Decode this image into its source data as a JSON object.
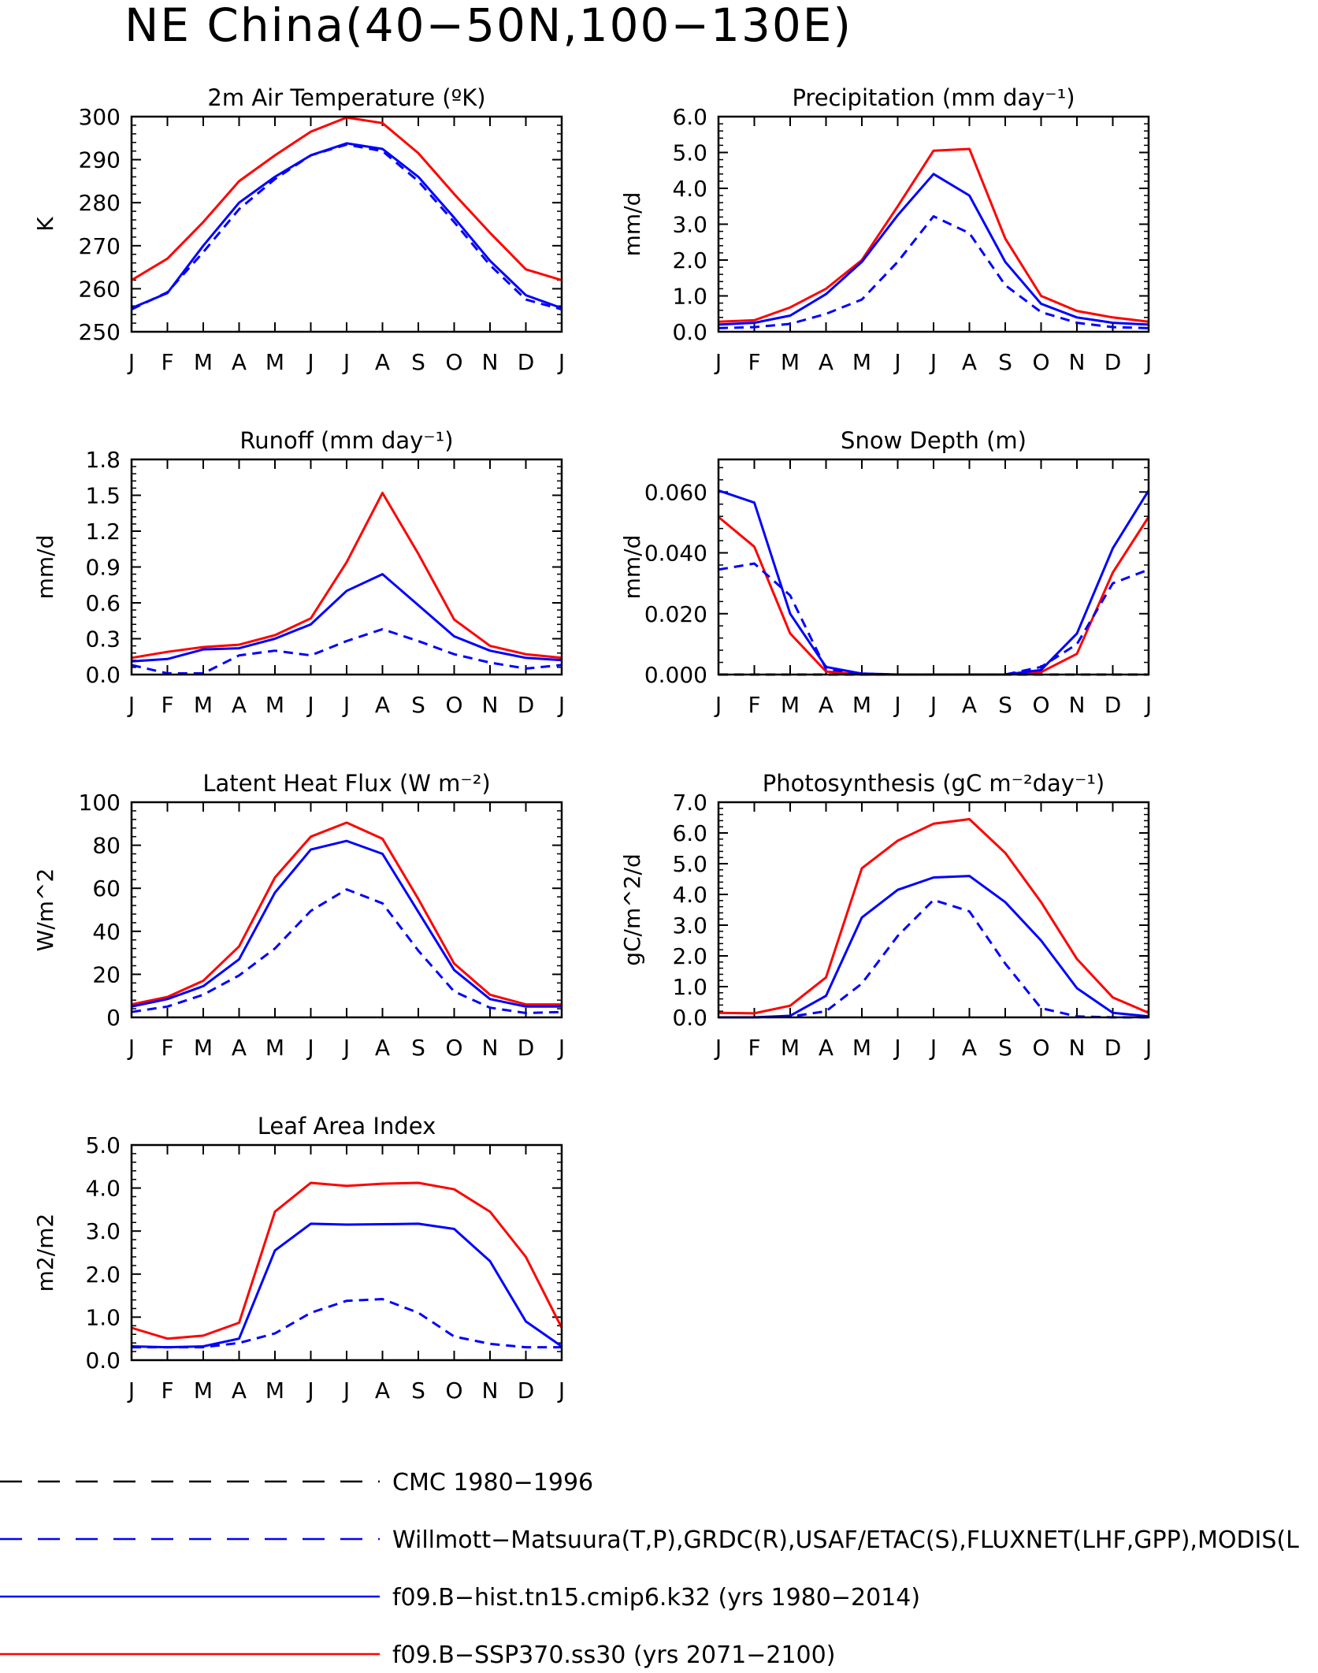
{
  "figure": {
    "title": "NE China(40−50N,100−130E)",
    "month_labels": [
      "J",
      "F",
      "M",
      "A",
      "M",
      "J",
      "J",
      "A",
      "S",
      "O",
      "N",
      "D",
      "J"
    ]
  },
  "colors": {
    "model_hist": "#0000ff",
    "model_ssp": "#ff0000",
    "obs": "#0000ff",
    "cmc": "#000000"
  },
  "legend": {
    "items": [
      {
        "label": "CMC 1980−1996",
        "color": "#000000",
        "style": "dashed"
      },
      {
        "label": "Willmott−Matsuura(T,P),GRDC(R),USAF/ETAC(S),FLUXNET(LHF,GPP),MODIS(L",
        "color": "#0000ff",
        "style": "dashed"
      },
      {
        "label": "f09.B−hist.tn15.cmip6.k32 (yrs 1980−2014)",
        "color": "#0000ff",
        "style": "solid"
      },
      {
        "label": "f09.B−SSP370.ss30 (yrs 2071−2100)",
        "color": "#ff0000",
        "style": "solid"
      }
    ]
  },
  "chart_data": [
    {
      "type": "line",
      "title": "2m Air Temperature (ºK)",
      "ylabel": "K",
      "ylim": [
        250,
        300
      ],
      "yticks": [
        "250",
        "260",
        "270",
        "280",
        "290",
        "300"
      ],
      "x": [
        "J",
        "F",
        "M",
        "A",
        "M",
        "J",
        "J",
        "A",
        "S",
        "O",
        "N",
        "D",
        "J"
      ],
      "series": [
        {
          "values": [
            262,
            267,
            275.5,
            285,
            291,
            296.5,
            299.8,
            298.5,
            291.5,
            282,
            273,
            264.5,
            262
          ],
          "color": "#ff0000",
          "style": "solid"
        },
        {
          "values": [
            255.5,
            259,
            270,
            280,
            286,
            291,
            293.8,
            292.5,
            286,
            276.5,
            266.5,
            258.5,
            255.5
          ],
          "color": "#0000ff",
          "style": "solid"
        },
        {
          "values": [
            255.2,
            259.2,
            268.5,
            278.5,
            285.5,
            291,
            293.5,
            292,
            285,
            275.5,
            265.5,
            257.5,
            255.2
          ],
          "color": "#0000ff",
          "style": "dashed"
        }
      ]
    },
    {
      "type": "line",
      "title": "Precipitation (mm day⁻¹)",
      "ylabel": "mm/d",
      "ylim": [
        0,
        6
      ],
      "yticks": [
        "0.0",
        "1.0",
        "2.0",
        "3.0",
        "4.0",
        "5.0",
        "6.0"
      ],
      "x": [
        "J",
        "F",
        "M",
        "A",
        "M",
        "J",
        "J",
        "A",
        "S",
        "O",
        "N",
        "D",
        "J"
      ],
      "series": [
        {
          "values": [
            0.28,
            0.32,
            0.68,
            1.2,
            2.0,
            3.5,
            5.05,
            5.1,
            2.6,
            1.0,
            0.58,
            0.4,
            0.28
          ],
          "color": "#ff0000",
          "style": "solid"
        },
        {
          "values": [
            0.2,
            0.25,
            0.45,
            1.05,
            1.95,
            3.25,
            4.4,
            3.8,
            1.95,
            0.78,
            0.4,
            0.25,
            0.2
          ],
          "color": "#0000ff",
          "style": "solid"
        },
        {
          "values": [
            0.1,
            0.13,
            0.22,
            0.5,
            0.9,
            1.95,
            3.22,
            2.75,
            1.3,
            0.55,
            0.25,
            0.13,
            0.1
          ],
          "color": "#0000ff",
          "style": "dashed"
        }
      ]
    },
    {
      "type": "line",
      "title": "Runoff (mm day⁻¹)",
      "ylabel": "mm/d",
      "ylim": [
        0,
        1.8
      ],
      "yticks": [
        "0.0",
        "0.3",
        "0.6",
        "0.9",
        "1.2",
        "1.5",
        "1.8"
      ],
      "x": [
        "J",
        "F",
        "M",
        "A",
        "M",
        "J",
        "J",
        "A",
        "S",
        "O",
        "N",
        "D",
        "J"
      ],
      "series": [
        {
          "values": [
            0.14,
            0.19,
            0.23,
            0.25,
            0.33,
            0.47,
            0.94,
            1.52,
            1.01,
            0.46,
            0.24,
            0.17,
            0.14
          ],
          "color": "#ff0000",
          "style": "solid"
        },
        {
          "values": [
            0.11,
            0.13,
            0.21,
            0.22,
            0.3,
            0.42,
            0.7,
            0.84,
            0.58,
            0.32,
            0.2,
            0.14,
            0.12
          ],
          "color": "#0000ff",
          "style": "solid"
        },
        {
          "values": [
            0.08,
            0.01,
            0.01,
            0.16,
            0.2,
            0.16,
            0.28,
            0.38,
            0.28,
            0.17,
            0.1,
            0.05,
            0.08
          ],
          "color": "#0000ff",
          "style": "dashed"
        }
      ]
    },
    {
      "type": "line",
      "title": "Snow Depth (m)",
      "ylabel": "mm/d",
      "ylim": [
        0,
        0.0707
      ],
      "yticks": [
        "0.000",
        "0.020",
        "0.040",
        "0.060"
      ],
      "ytick_values": [
        0,
        0.02,
        0.04,
        0.06
      ],
      "x": [
        "J",
        "F",
        "M",
        "A",
        "M",
        "J",
        "J",
        "A",
        "S",
        "O",
        "N",
        "D",
        "J"
      ],
      "series": [
        {
          "values": [
            0.0518,
            0.042,
            0.0135,
            0.001,
            0.0,
            0.0,
            0.0,
            0.0,
            0.0,
            0.0008,
            0.0068,
            0.0335,
            0.0518
          ],
          "color": "#ff0000",
          "style": "solid"
        },
        {
          "values": [
            0.0605,
            0.0565,
            0.02,
            0.0025,
            0.0003,
            0.0,
            0.0,
            0.0,
            0.0,
            0.0015,
            0.0135,
            0.0415,
            0.0605
          ],
          "color": "#0000ff",
          "style": "solid"
        },
        {
          "values": [
            0.0345,
            0.0365,
            0.026,
            0.0018,
            0.0003,
            0.0,
            0.0,
            0.0,
            0.0,
            0.0025,
            0.01,
            0.03,
            0.0345
          ],
          "color": "#0000ff",
          "style": "dashed"
        },
        {
          "values": [
            0,
            0,
            0,
            0,
            0,
            0,
            0,
            0,
            0,
            0,
            0,
            0,
            0
          ],
          "color": "#000000",
          "style": "dashed"
        }
      ]
    },
    {
      "type": "line",
      "title": "Latent Heat Flux (W m⁻²)",
      "ylabel": "W/m^2",
      "ylim": [
        0,
        100
      ],
      "yticks": [
        "0",
        "20",
        "40",
        "60",
        "80",
        "100"
      ],
      "x": [
        "J",
        "F",
        "M",
        "A",
        "M",
        "J",
        "J",
        "A",
        "S",
        "O",
        "N",
        "D",
        "J"
      ],
      "series": [
        {
          "values": [
            6,
            9.5,
            17,
            33,
            65,
            84,
            90.5,
            83,
            55,
            25,
            10.5,
            6,
            6
          ],
          "color": "#ff0000",
          "style": "solid"
        },
        {
          "values": [
            5,
            8.5,
            14.5,
            27,
            58,
            78,
            82,
            76,
            49,
            22,
            8.5,
            5,
            5
          ],
          "color": "#0000ff",
          "style": "solid"
        },
        {
          "values": [
            2.5,
            5,
            10.5,
            19.5,
            32,
            49.5,
            59.5,
            53,
            31,
            12,
            4.5,
            2,
            2.5
          ],
          "color": "#0000ff",
          "style": "dashed"
        }
      ]
    },
    {
      "type": "line",
      "title": "Photosynthesis (gC m⁻²day⁻¹)",
      "ylabel": "gC/m^2/d",
      "ylim": [
        0,
        7
      ],
      "yticks": [
        "0.0",
        "1.0",
        "2.0",
        "3.0",
        "4.0",
        "5.0",
        "6.0",
        "7.0"
      ],
      "x": [
        "J",
        "F",
        "M",
        "A",
        "M",
        "J",
        "J",
        "A",
        "S",
        "O",
        "N",
        "D",
        "J"
      ],
      "series": [
        {
          "values": [
            0.15,
            0.13,
            0.38,
            1.3,
            4.85,
            5.75,
            6.3,
            6.45,
            5.35,
            3.75,
            1.9,
            0.65,
            0.15
          ],
          "color": "#ff0000",
          "style": "solid"
        },
        {
          "values": [
            0.0,
            0.0,
            0.05,
            0.7,
            3.25,
            4.15,
            4.55,
            4.6,
            3.75,
            2.5,
            0.95,
            0.15,
            0.03
          ],
          "color": "#0000ff",
          "style": "solid"
        },
        {
          "values": [
            0.0,
            0.0,
            0.02,
            0.2,
            1.1,
            2.65,
            3.82,
            3.45,
            1.75,
            0.3,
            0.03,
            0.0,
            0.0
          ],
          "color": "#0000ff",
          "style": "dashed"
        }
      ]
    },
    {
      "type": "line",
      "title": "Leaf Area Index",
      "ylabel": "m2/m2",
      "ylim": [
        0,
        5
      ],
      "yticks": [
        "0.0",
        "1.0",
        "2.0",
        "3.0",
        "4.0",
        "5.0"
      ],
      "x": [
        "J",
        "F",
        "M",
        "A",
        "M",
        "J",
        "J",
        "A",
        "S",
        "O",
        "N",
        "D",
        "J"
      ],
      "series": [
        {
          "values": [
            0.75,
            0.5,
            0.57,
            0.87,
            3.45,
            4.12,
            4.05,
            4.1,
            4.12,
            3.97,
            3.45,
            2.4,
            0.75
          ],
          "color": "#ff0000",
          "style": "solid"
        },
        {
          "values": [
            0.32,
            0.3,
            0.32,
            0.5,
            2.55,
            3.17,
            3.15,
            3.16,
            3.17,
            3.05,
            2.3,
            0.9,
            0.32
          ],
          "color": "#0000ff",
          "style": "solid"
        },
        {
          "values": [
            0.3,
            0.3,
            0.3,
            0.4,
            0.62,
            1.1,
            1.38,
            1.42,
            1.1,
            0.55,
            0.38,
            0.3,
            0.3
          ],
          "color": "#0000ff",
          "style": "dashed"
        }
      ]
    }
  ]
}
